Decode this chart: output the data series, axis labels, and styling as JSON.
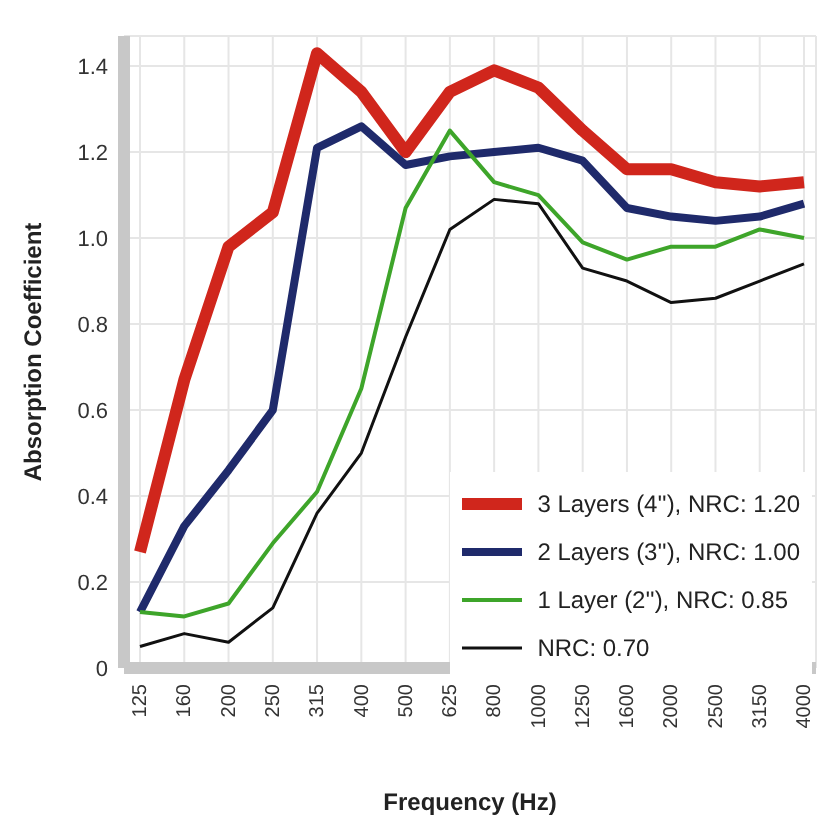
{
  "chart_data": {
    "type": "line",
    "xlabel": "Frequency (Hz)",
    "ylabel": "Absorption Coefficient",
    "categories": [
      "125",
      "160",
      "200",
      "250",
      "315",
      "400",
      "500",
      "625",
      "800",
      "1000",
      "1250",
      "1600",
      "2000",
      "2500",
      "3150",
      "4000"
    ],
    "series": [
      {
        "name": "3 Layers (4''), NRC: 1.20",
        "color": "#d0261c",
        "values": [
          0.27,
          0.67,
          0.98,
          1.06,
          1.43,
          1.34,
          1.2,
          1.34,
          1.39,
          1.35,
          1.25,
          1.16,
          1.16,
          1.13,
          1.12,
          1.13
        ]
      },
      {
        "name": "2 Layers (3''), NRC: 1.00",
        "color": "#1f2a6b",
        "values": [
          0.13,
          0.33,
          0.46,
          0.6,
          1.21,
          1.26,
          1.17,
          1.19,
          1.2,
          1.21,
          1.18,
          1.07,
          1.05,
          1.04,
          1.05,
          1.08
        ]
      },
      {
        "name": "1 Layer (2''), NRC: 0.85",
        "color": "#3ea52a",
        "values": [
          0.13,
          0.12,
          0.15,
          0.29,
          0.41,
          0.65,
          1.07,
          1.25,
          1.13,
          1.1,
          0.99,
          0.95,
          0.98,
          0.98,
          1.02,
          1.0
        ]
      },
      {
        "name": "NRC: 0.70",
        "color": "#111111",
        "values": [
          0.05,
          0.08,
          0.06,
          0.14,
          0.36,
          0.5,
          0.77,
          1.02,
          1.09,
          1.08,
          0.93,
          0.9,
          0.85,
          0.86,
          0.9,
          0.94
        ]
      }
    ],
    "ylim": [
      0,
      1.47
    ],
    "yticks": [
      0,
      0.2,
      0.4,
      0.6,
      0.8,
      {
        "value": 1,
        "label": "1.0"
      },
      1.2,
      1.4
    ],
    "grid": true,
    "legend": "right",
    "marker": "none",
    "line_style": "solid"
  }
}
